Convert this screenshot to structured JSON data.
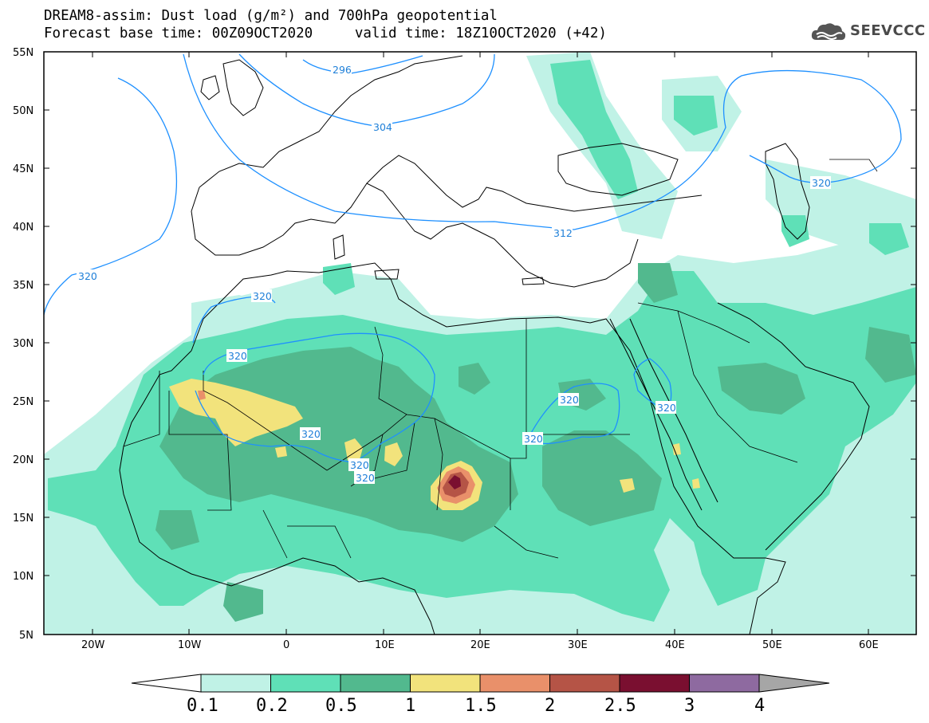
{
  "header": {
    "line1": "DREAM8-assim: Dust load (g/m²) and 700hPa geopotential",
    "line2": "Forecast base time: 00Z09OCT2020     valid time: 18Z10OCT2020 (+42)"
  },
  "logo": {
    "text": "SEEVCCC",
    "icon": "cloud-icon"
  },
  "map": {
    "lat_labels": [
      "55N",
      "50N",
      "45N",
      "40N",
      "35N",
      "30N",
      "25N",
      "20N",
      "15N",
      "10N",
      "5N"
    ],
    "lon_labels": [
      "20W",
      "10W",
      "0",
      "10E",
      "20E",
      "30E",
      "40E",
      "50E",
      "60E"
    ],
    "contour_labels": [
      "296",
      "304",
      "312",
      "320",
      "320",
      "320",
      "320",
      "320",
      "320",
      "320",
      "320",
      "320"
    ]
  },
  "colorbar": {
    "ticks": [
      "0.1",
      "0.2",
      "0.5",
      "1",
      "1.5",
      "2",
      "2.5",
      "3",
      "4"
    ],
    "colors": [
      "#c0f2e6",
      "#5fe0b7",
      "#52b98e",
      "#f2e37c",
      "#e9906a",
      "#b55446",
      "#7a0f30",
      "#8e6aa0"
    ]
  },
  "colors": {
    "very_light": "#c0f2e6",
    "light": "#5fe0b7",
    "medium": "#52b98e",
    "yellow": "#f2e37c",
    "orange": "#e9906a",
    "brown": "#b55446",
    "maroon": "#7a0f30",
    "contour": "#1e90ff"
  }
}
